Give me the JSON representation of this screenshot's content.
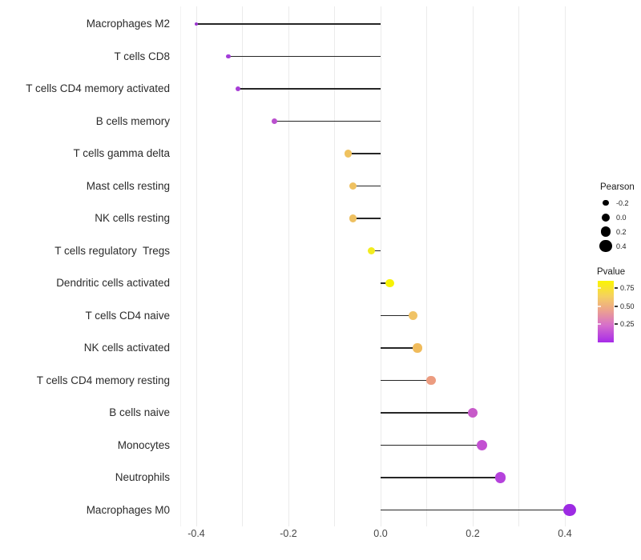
{
  "chart_data": {
    "type": "lollipop",
    "title": "",
    "xlabel": "",
    "ylabel": "",
    "x_ticks": [
      "-0.4",
      "-0.2",
      "0.0",
      "0.2",
      "0.4"
    ],
    "x_tick_values": [
      -0.4,
      -0.2,
      0.0,
      0.2,
      0.4
    ],
    "xlim": [
      -0.44,
      0.44
    ],
    "grid": "vertical gridlines every 0.1, light gray, white background",
    "legend_position": "right",
    "points": [
      {
        "label": "Macrophages M2",
        "pearson": -0.4,
        "color": "#9B36CF"
      },
      {
        "label": "T cells CD8",
        "pearson": -0.33,
        "color": "#A33DD9"
      },
      {
        "label": "T cells CD4 memory activated",
        "pearson": -0.31,
        "color": "#A73ED6"
      },
      {
        "label": "B cells memory",
        "pearson": -0.23,
        "color": "#BA50CE"
      },
      {
        "label": "T cells gamma delta",
        "pearson": -0.07,
        "color": "#EFC25F"
      },
      {
        "label": "Mast cells resting",
        "pearson": -0.06,
        "color": "#EFC160"
      },
      {
        "label": "NK cells resting",
        "pearson": -0.06,
        "color": "#EEC061"
      },
      {
        "label": "T cells regulatory  Tregs",
        "pearson": -0.02,
        "color": "#F2EC1F"
      },
      {
        "label": "Dendritic cells activated",
        "pearson": 0.02,
        "color": "#F7F204"
      },
      {
        "label": "T cells CD4 naive",
        "pearson": 0.07,
        "color": "#F0C366"
      },
      {
        "label": "NK cells activated",
        "pearson": 0.08,
        "color": "#F0BB5B"
      },
      {
        "label": "T cells CD4 memory resting",
        "pearson": 0.11,
        "color": "#EC9C80"
      },
      {
        "label": "B cells naive",
        "pearson": 0.2,
        "color": "#C75AC9"
      },
      {
        "label": "Monocytes",
        "pearson": 0.22,
        "color": "#C350D2"
      },
      {
        "label": "Neutrophils",
        "pearson": 0.26,
        "color": "#B542DC"
      },
      {
        "label": "Macrophages M0",
        "pearson": 0.41,
        "color": "#9D2BE3"
      }
    ],
    "legend_size": {
      "title": "Pearson",
      "entries": [
        "-0.2",
        "0.0",
        "0.2",
        "0.4"
      ],
      "entry_values": [
        -0.2,
        0.0,
        0.2,
        0.4
      ],
      "dot_color": "#000000"
    },
    "legend_color": {
      "title": "Pvalue",
      "labels": [
        "0.75",
        "0.50",
        "0.25"
      ],
      "gradient_stops": [
        "#FBF500",
        "#F5D160",
        "#ECA28E",
        "#D66FCB",
        "#A72BE8"
      ]
    }
  }
}
